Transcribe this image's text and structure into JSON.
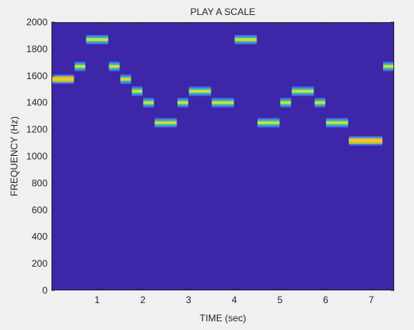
{
  "chart_data": {
    "type": "heatmap",
    "title": "PLAY A SCALE",
    "xlabel": "TIME (sec)",
    "ylabel": "FREQUENCY (Hz)",
    "xlim": [
      0,
      7.5
    ],
    "ylim": [
      0,
      2000
    ],
    "xticks": [
      1,
      2,
      3,
      4,
      5,
      6,
      7
    ],
    "yticks": [
      0,
      200,
      400,
      600,
      800,
      1000,
      1200,
      1400,
      1600,
      1800,
      2000
    ],
    "background_color": "#3e26a8",
    "notes": [
      {
        "t0": 0.0,
        "t1": 0.5,
        "freq": 1575,
        "strength": 1.0
      },
      {
        "t0": 0.5,
        "t1": 0.75,
        "freq": 1670,
        "strength": 0.6
      },
      {
        "t0": 0.75,
        "t1": 1.25,
        "freq": 1870,
        "strength": 0.75
      },
      {
        "t0": 1.25,
        "t1": 1.5,
        "freq": 1670,
        "strength": 0.6
      },
      {
        "t0": 1.5,
        "t1": 1.75,
        "freq": 1575,
        "strength": 0.85
      },
      {
        "t0": 1.75,
        "t1": 2.0,
        "freq": 1485,
        "strength": 0.7
      },
      {
        "t0": 2.0,
        "t1": 2.25,
        "freq": 1400,
        "strength": 0.65
      },
      {
        "t0": 2.25,
        "t1": 2.75,
        "freq": 1250,
        "strength": 0.8
      },
      {
        "t0": 2.75,
        "t1": 3.0,
        "freq": 1400,
        "strength": 0.65
      },
      {
        "t0": 3.0,
        "t1": 3.5,
        "freq": 1485,
        "strength": 0.75
      },
      {
        "t0": 3.5,
        "t1": 4.0,
        "freq": 1400,
        "strength": 0.65
      },
      {
        "t0": 4.0,
        "t1": 4.5,
        "freq": 1870,
        "strength": 0.8
      },
      {
        "t0": 4.5,
        "t1": 5.0,
        "freq": 1250,
        "strength": 0.75
      },
      {
        "t0": 5.0,
        "t1": 5.25,
        "freq": 1400,
        "strength": 0.65
      },
      {
        "t0": 5.25,
        "t1": 5.75,
        "freq": 1485,
        "strength": 0.75
      },
      {
        "t0": 5.75,
        "t1": 6.0,
        "freq": 1400,
        "strength": 0.65
      },
      {
        "t0": 6.0,
        "t1": 6.5,
        "freq": 1250,
        "strength": 0.75
      },
      {
        "t0": 6.5,
        "t1": 7.25,
        "freq": 1115,
        "strength": 1.0
      },
      {
        "t0": 7.25,
        "t1": 7.5,
        "freq": 1670,
        "strength": 0.65
      }
    ]
  }
}
